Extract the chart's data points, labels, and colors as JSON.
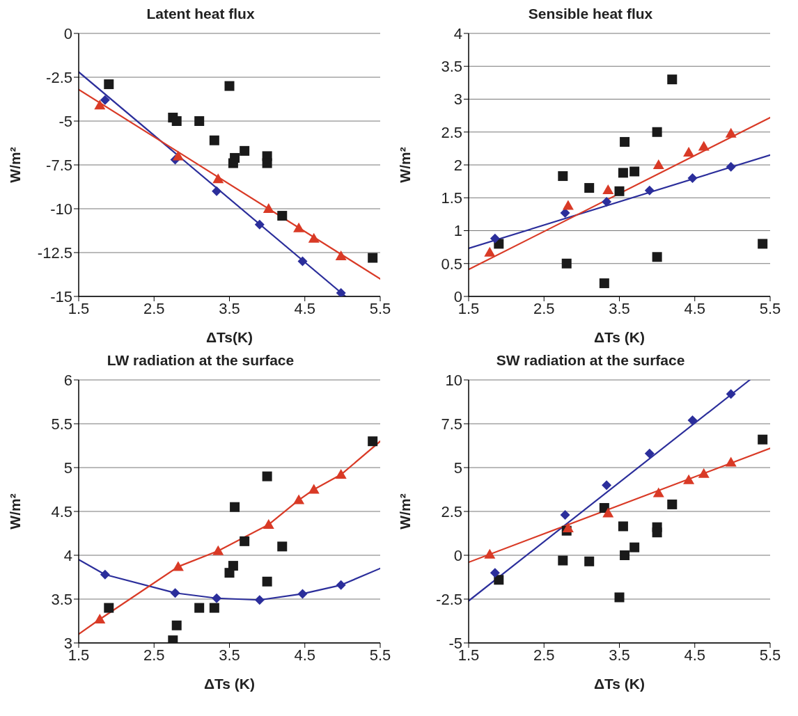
{
  "chart_data": [
    {
      "type": "scatter",
      "title": "Latent heat flux",
      "xlabel": "ΔTs(K)",
      "ylabel": "W/m²",
      "xlim": [
        1.5,
        5.5
      ],
      "xticks": [
        1.5,
        2.5,
        3.5,
        4.5,
        5.5
      ],
      "ylim": [
        -15,
        0
      ],
      "yticks": [
        -15,
        -12.5,
        -10,
        -7.5,
        -5,
        -2.5,
        0
      ],
      "grid": "y",
      "series": [
        {
          "type": "scatter",
          "marker": "square",
          "color": "#1a1a1a",
          "x": [
            1.9,
            2.75,
            2.8,
            3.1,
            3.3,
            3.5,
            3.55,
            3.57,
            3.7,
            4.0,
            4.0,
            4.2,
            5.4
          ],
          "values": [
            -2.9,
            -4.8,
            -5.0,
            -5.0,
            -6.1,
            -3.0,
            -7.4,
            -7.1,
            -6.7,
            -7.0,
            -7.4,
            -10.4,
            -12.8
          ]
        },
        {
          "type": "line",
          "marker": "none",
          "color": "#2b2e9b",
          "x": [
            1.5,
            5.04
          ],
          "values": [
            -2.2,
            -15
          ]
        },
        {
          "type": "scatter",
          "marker": "diamond",
          "color": "#2b2e9b",
          "x": [
            1.85,
            2.78,
            3.33,
            3.9,
            4.47,
            4.98
          ],
          "values": [
            -3.8,
            -7.2,
            -9.0,
            -10.9,
            -13.0,
            -14.8
          ]
        },
        {
          "type": "line",
          "marker": "none",
          "color": "#d93a26",
          "x": [
            1.5,
            5.5
          ],
          "values": [
            -3.2,
            -14.0
          ]
        },
        {
          "type": "scatter",
          "marker": "triangle",
          "color": "#d93a26",
          "x": [
            1.78,
            2.82,
            3.35,
            4.02,
            4.42,
            4.62,
            4.98
          ],
          "values": [
            -4.1,
            -7.0,
            -8.3,
            -10.0,
            -11.1,
            -11.7,
            -12.7
          ]
        }
      ]
    },
    {
      "type": "scatter",
      "title": "Sensible heat flux",
      "xlabel": "ΔTs (K)",
      "ylabel": "W/m²",
      "xlim": [
        1.5,
        5.5
      ],
      "xticks": [
        1.5,
        2.5,
        3.5,
        4.5,
        5.5
      ],
      "ylim": [
        0,
        4
      ],
      "yticks": [
        0,
        0.5,
        1,
        1.5,
        2,
        2.5,
        3,
        3.5,
        4
      ],
      "grid": "y",
      "series": [
        {
          "type": "scatter",
          "marker": "square",
          "color": "#1a1a1a",
          "x": [
            1.9,
            2.75,
            2.8,
            3.1,
            3.3,
            3.5,
            3.55,
            3.57,
            3.7,
            4.0,
            4.0,
            4.2,
            5.4
          ],
          "values": [
            0.8,
            1.83,
            0.5,
            1.65,
            0.2,
            1.6,
            1.88,
            2.35,
            1.9,
            2.5,
            0.6,
            3.3,
            0.8
          ]
        },
        {
          "type": "line",
          "marker": "none",
          "color": "#2b2e9b",
          "x": [
            1.5,
            5.5
          ],
          "values": [
            0.73,
            2.15
          ]
        },
        {
          "type": "scatter",
          "marker": "diamond",
          "color": "#2b2e9b",
          "x": [
            1.85,
            2.78,
            3.33,
            3.9,
            4.47,
            4.98
          ],
          "values": [
            0.88,
            1.27,
            1.44,
            1.61,
            1.8,
            1.97
          ]
        },
        {
          "type": "line",
          "marker": "none",
          "color": "#d93a26",
          "x": [
            1.5,
            5.5
          ],
          "values": [
            0.41,
            2.72
          ]
        },
        {
          "type": "scatter",
          "marker": "triangle",
          "color": "#d93a26",
          "x": [
            1.78,
            2.82,
            3.35,
            4.02,
            4.42,
            4.62,
            4.98
          ],
          "values": [
            0.67,
            1.38,
            1.62,
            2.0,
            2.19,
            2.28,
            2.48
          ]
        }
      ]
    },
    {
      "type": "scatter",
      "title": "LW radiation at the surface",
      "xlabel": "ΔTs (K)",
      "ylabel": "W/m²",
      "xlim": [
        1.5,
        5.5
      ],
      "xticks": [
        1.5,
        2.5,
        3.5,
        4.5,
        5.5
      ],
      "ylim": [
        3,
        6
      ],
      "yticks": [
        3,
        3.5,
        4,
        4.5,
        5,
        5.5,
        6
      ],
      "grid": "y",
      "series": [
        {
          "type": "scatter",
          "marker": "square",
          "color": "#1a1a1a",
          "x": [
            1.9,
            2.75,
            2.8,
            3.1,
            3.3,
            3.5,
            3.55,
            3.57,
            3.7,
            4.0,
            4.0,
            4.2,
            5.4
          ],
          "values": [
            3.4,
            3.03,
            3.2,
            3.4,
            3.4,
            3.8,
            3.88,
            4.55,
            4.16,
            4.9,
            3.7,
            4.1,
            5.3
          ]
        },
        {
          "type": "line",
          "marker": "none",
          "color": "#2b2e9b",
          "x": [
            1.5,
            1.85,
            2.78,
            3.33,
            3.9,
            4.47,
            4.98,
            5.5
          ],
          "values": [
            3.95,
            3.78,
            3.57,
            3.51,
            3.49,
            3.56,
            3.66,
            3.85
          ]
        },
        {
          "type": "scatter",
          "marker": "diamond",
          "color": "#2b2e9b",
          "x": [
            1.85,
            2.78,
            3.33,
            3.9,
            4.47,
            4.98
          ],
          "values": [
            3.78,
            3.57,
            3.51,
            3.49,
            3.56,
            3.66
          ]
        },
        {
          "type": "line",
          "marker": "none",
          "color": "#d93a26",
          "x": [
            1.5,
            1.78,
            2.82,
            3.35,
            4.02,
            4.42,
            4.62,
            4.98,
            5.5
          ],
          "values": [
            3.1,
            3.27,
            3.87,
            4.05,
            4.35,
            4.63,
            4.75,
            4.92,
            5.3
          ]
        },
        {
          "type": "scatter",
          "marker": "triangle",
          "color": "#d93a26",
          "x": [
            1.78,
            2.82,
            3.35,
            4.02,
            4.42,
            4.62,
            4.98
          ],
          "values": [
            3.27,
            3.87,
            4.05,
            4.35,
            4.63,
            4.75,
            4.92
          ]
        }
      ]
    },
    {
      "type": "scatter",
      "title": "SW radiation at the surface",
      "xlabel": "ΔTs (K)",
      "ylabel": "W/m²",
      "xlim": [
        1.5,
        5.5
      ],
      "xticks": [
        1.5,
        2.5,
        3.5,
        4.5,
        5.5
      ],
      "ylim": [
        -5,
        10
      ],
      "yticks": [
        -5,
        -2.5,
        0,
        2.5,
        5,
        7.5,
        10
      ],
      "grid": "y",
      "series": [
        {
          "type": "scatter",
          "marker": "square",
          "color": "#1a1a1a",
          "x": [
            1.9,
            2.75,
            2.8,
            3.1,
            3.3,
            3.5,
            3.55,
            3.57,
            3.7,
            4.0,
            4.0,
            4.2,
            5.4
          ],
          "values": [
            -1.4,
            -0.3,
            1.4,
            -0.35,
            2.7,
            -2.4,
            1.65,
            0.0,
            0.45,
            1.6,
            1.3,
            2.9,
            6.6
          ]
        },
        {
          "type": "line",
          "marker": "none",
          "color": "#2b2e9b",
          "x": [
            1.5,
            5.23
          ],
          "values": [
            -2.6,
            10
          ]
        },
        {
          "type": "scatter",
          "marker": "diamond",
          "color": "#2b2e9b",
          "x": [
            1.85,
            2.78,
            3.33,
            3.9,
            4.47,
            4.98
          ],
          "values": [
            -1.0,
            2.3,
            4.0,
            5.8,
            7.7,
            9.2
          ]
        },
        {
          "type": "line",
          "marker": "none",
          "color": "#d93a26",
          "x": [
            1.5,
            5.5
          ],
          "values": [
            -0.4,
            6.1
          ]
        },
        {
          "type": "scatter",
          "marker": "triangle",
          "color": "#d93a26",
          "x": [
            1.78,
            2.82,
            3.35,
            4.02,
            4.42,
            4.62,
            4.98
          ],
          "values": [
            0.05,
            1.55,
            2.4,
            3.55,
            4.3,
            4.65,
            5.3
          ]
        }
      ]
    }
  ]
}
